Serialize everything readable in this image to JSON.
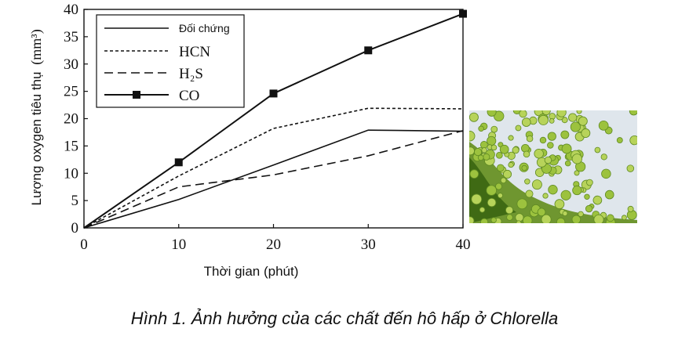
{
  "chart_data": {
    "type": "line",
    "ylabel": "Lượng oxygen tiêu thụ",
    "ylabel_unit": "(mm³)",
    "xlabel": "Thời gian (phút)",
    "xlim": [
      0,
      40
    ],
    "ylim": [
      0,
      40
    ],
    "x_ticks": [
      0,
      10,
      20,
      30,
      40
    ],
    "y_ticks": [
      0,
      5,
      10,
      15,
      20,
      25,
      30,
      35,
      40
    ],
    "legend_position": "top-left",
    "grid": false,
    "series": [
      {
        "name": "Đối chứng",
        "style": "solid",
        "marker": "none",
        "x": [
          0,
          10,
          20,
          30,
          40
        ],
        "y": [
          0,
          5.2,
          11.5,
          17.9,
          17.7
        ]
      },
      {
        "name": "HCN",
        "style": "dotted",
        "marker": "none",
        "x": [
          0,
          10,
          20,
          30,
          40
        ],
        "y": [
          0,
          9.5,
          18.2,
          21.9,
          21.8
        ]
      },
      {
        "name": "H₂S",
        "style": "dashed",
        "marker": "none",
        "x": [
          0,
          10,
          20,
          30,
          40
        ],
        "y": [
          0,
          7.5,
          9.7,
          13.2,
          17.8
        ]
      },
      {
        "name": "CO",
        "style": "solid",
        "marker": "square",
        "x": [
          0,
          10,
          20,
          30,
          40
        ],
        "y": [
          0,
          12.0,
          24.6,
          32.5,
          39.2
        ]
      }
    ]
  },
  "caption": "Hình 1. Ảnh hưởng của các chất đến hô hấp ở Chlorella"
}
